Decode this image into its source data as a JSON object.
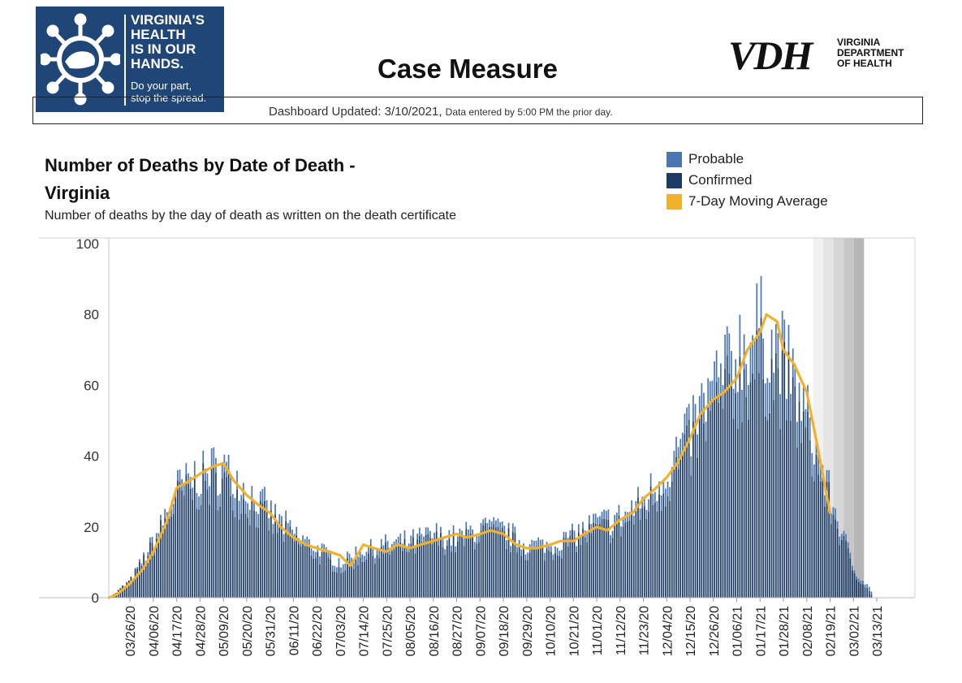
{
  "logo": {
    "main_text": "VIRGINIA'S\nHEALTH\nIS IN OUR\nHANDS.",
    "sub_text": "Do your part,\nstop the spread.",
    "icon": "virus-icon"
  },
  "header": {
    "title": "Case Measure"
  },
  "vdh": {
    "letters": "VDH",
    "name": "VIRGINIA\nDEPARTMENT\nOF HEALTH"
  },
  "updated": {
    "text": "Dashboard Updated: 3/10/2021,",
    "note": "Data entered by 5:00 PM the prior day."
  },
  "colors": {
    "probable": "#4a77b4",
    "confirmed": "#1b3a64",
    "moving_average": "#f2b12c",
    "logo_bg": "#1f4677"
  },
  "chart_data": {
    "type": "bar",
    "title": "Number of Deaths by Date of Death - Virginia",
    "subtitle": "Number of deaths by the day of death as written on the death certificate",
    "x_range": [
      "2020-03-16",
      "2021-03-13"
    ],
    "ylim": [
      0,
      100
    ],
    "y_ticks": [
      0,
      20,
      40,
      60,
      80,
      100
    ],
    "x_tick_labels": [
      "03/26/20",
      "04/06/20",
      "04/17/20",
      "04/28/20",
      "05/09/20",
      "05/20/20",
      "05/31/20",
      "06/11/20",
      "06/22/20",
      "07/03/20",
      "07/14/20",
      "07/25/20",
      "08/05/20",
      "08/16/20",
      "08/27/20",
      "09/07/20",
      "09/18/20",
      "09/29/20",
      "10/10/20",
      "10/21/20",
      "11/01/20",
      "11/12/20",
      "11/23/20",
      "12/04/20",
      "12/15/20",
      "12/26/20",
      "01/06/21",
      "01/17/21",
      "01/28/21",
      "02/08/21",
      "02/19/21",
      "03/02/21",
      "03/13/21"
    ],
    "legend": [
      "Probable",
      "Confirmed",
      "7-Day Moving Average"
    ],
    "legend_position": "top-right",
    "incomplete_period_shading": [
      "2021-02-11",
      "2021-03-07"
    ],
    "series": [
      {
        "name": "Probable",
        "style": "stacked bar",
        "x": [
          "2020-03-26",
          "2020-04-17",
          "2020-05-09",
          "2020-06-11",
          "2020-07-14",
          "2020-08-16",
          "2020-09-18",
          "2020-10-21",
          "2020-11-23",
          "2020-12-15",
          "2021-01-06",
          "2021-01-17",
          "2021-01-28",
          "2021-02-08",
          "2021-02-19",
          "2021-03-02"
        ],
        "values": [
          0,
          3,
          5,
          2,
          2,
          2,
          2,
          2,
          3,
          6,
          10,
          11,
          8,
          6,
          3,
          1
        ]
      },
      {
        "name": "Confirmed",
        "style": "stacked bar",
        "x": [
          "2020-03-16",
          "2020-03-26",
          "2020-04-06",
          "2020-04-17",
          "2020-04-28",
          "2020-05-09",
          "2020-05-20",
          "2020-05-31",
          "2020-06-11",
          "2020-06-22",
          "2020-07-03",
          "2020-07-14",
          "2020-07-25",
          "2020-08-05",
          "2020-08-16",
          "2020-08-27",
          "2020-09-07",
          "2020-09-18",
          "2020-09-29",
          "2020-10-10",
          "2020-10-21",
          "2020-11-01",
          "2020-11-12",
          "2020-11-23",
          "2020-12-04",
          "2020-12-15",
          "2020-12-26",
          "2021-01-06",
          "2021-01-17",
          "2021-01-28",
          "2021-02-08",
          "2021-02-19",
          "2021-03-02",
          "2021-03-10"
        ],
        "values": [
          0,
          5,
          15,
          28,
          31,
          32,
          26,
          21,
          16,
          12,
          8,
          12,
          13,
          14,
          16,
          15,
          18,
          17,
          13,
          13,
          16,
          19,
          20,
          25,
          32,
          42,
          52,
          60,
          65,
          60,
          44,
          25,
          7,
          1
        ]
      },
      {
        "name": "7-Day Moving Average",
        "style": "line",
        "x": [
          "2020-03-16",
          "2020-03-20",
          "2020-03-26",
          "2020-04-01",
          "2020-04-06",
          "2020-04-12",
          "2020-04-17",
          "2020-04-23",
          "2020-04-28",
          "2020-05-04",
          "2020-05-09",
          "2020-05-14",
          "2020-05-20",
          "2020-05-26",
          "2020-05-31",
          "2020-06-05",
          "2020-06-11",
          "2020-06-17",
          "2020-06-22",
          "2020-06-28",
          "2020-07-03",
          "2020-07-08",
          "2020-07-14",
          "2020-07-19",
          "2020-07-25",
          "2020-07-30",
          "2020-08-05",
          "2020-08-10",
          "2020-08-16",
          "2020-08-21",
          "2020-08-27",
          "2020-09-01",
          "2020-09-07",
          "2020-09-12",
          "2020-09-18",
          "2020-09-24",
          "2020-09-29",
          "2020-10-04",
          "2020-10-10",
          "2020-10-15",
          "2020-10-21",
          "2020-10-26",
          "2020-11-01",
          "2020-11-06",
          "2020-11-12",
          "2020-11-18",
          "2020-11-23",
          "2020-11-29",
          "2020-12-04",
          "2020-12-09",
          "2020-12-15",
          "2020-12-20",
          "2020-12-26",
          "2020-12-31",
          "2021-01-06",
          "2021-01-11",
          "2021-01-17",
          "2021-01-20",
          "2021-01-25",
          "2021-01-28",
          "2021-02-02",
          "2021-02-08",
          "2021-02-13",
          "2021-02-19"
        ],
        "values": [
          0,
          1,
          4,
          8,
          13,
          21,
          31,
          33,
          35,
          37,
          38,
          33,
          29,
          26,
          24,
          20,
          17,
          15,
          14,
          13,
          12,
          9,
          15,
          14,
          13,
          15,
          14,
          15,
          16,
          17,
          18,
          17,
          18,
          19,
          18,
          15,
          14,
          14,
          15,
          16,
          16,
          18,
          20,
          19,
          22,
          24,
          28,
          31,
          34,
          38,
          45,
          52,
          56,
          58,
          62,
          70,
          75,
          80,
          78,
          70,
          66,
          58,
          43,
          24
        ]
      }
    ]
  }
}
